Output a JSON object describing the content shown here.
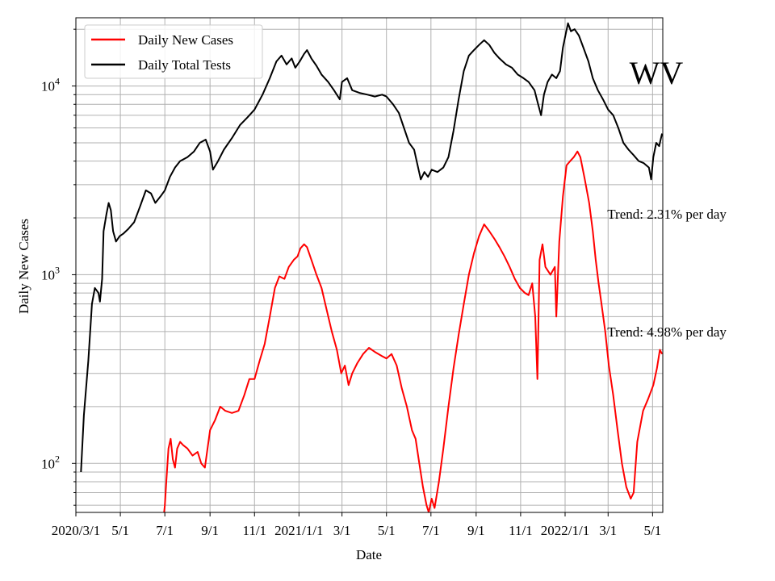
{
  "chart_data": {
    "type": "line",
    "title": "",
    "state_label": "WV",
    "xlabel": "Date",
    "ylabel": "Daily New Cases",
    "yscale": "log",
    "ylim": [
      55,
      23000
    ],
    "xlim": [
      "2020-03-01",
      "2022-05-15"
    ],
    "grid": true,
    "legend_position": "upper left",
    "x_ticks": [
      {
        "date": "2020-03-01",
        "label": "2020/3/1"
      },
      {
        "date": "2020-05-01",
        "label": "5/1"
      },
      {
        "date": "2020-07-01",
        "label": "7/1"
      },
      {
        "date": "2020-09-01",
        "label": "9/1"
      },
      {
        "date": "2020-11-01",
        "label": "11/1"
      },
      {
        "date": "2021-01-01",
        "label": "2021/1/1"
      },
      {
        "date": "2021-03-01",
        "label": "3/1"
      },
      {
        "date": "2021-05-01",
        "label": "5/1"
      },
      {
        "date": "2021-07-01",
        "label": "7/1"
      },
      {
        "date": "2021-09-01",
        "label": "9/1"
      },
      {
        "date": "2021-11-01",
        "label": "11/1"
      },
      {
        "date": "2022-01-01",
        "label": "2022/1/1"
      },
      {
        "date": "2022-03-01",
        "label": "3/1"
      },
      {
        "date": "2022-05-01",
        "label": "5/1"
      }
    ],
    "y_ticks": [
      {
        "value": 100,
        "base": "10",
        "exp": "2"
      },
      {
        "value": 1000,
        "base": "10",
        "exp": "3"
      },
      {
        "value": 10000,
        "base": "10",
        "exp": "4"
      }
    ],
    "annotations": [
      {
        "text": "Trend: 2.31% per day",
        "date": "2022-03-01",
        "value": 2100
      },
      {
        "text": "Trend: 4.98% per day",
        "date": "2022-03-01",
        "value": 500
      }
    ],
    "series": [
      {
        "name": "Daily Total Tests",
        "color": "#000000",
        "points": [
          [
            "2020-03-08",
            90
          ],
          [
            "2020-03-12",
            180
          ],
          [
            "2020-03-18",
            350
          ],
          [
            "2020-03-23",
            700
          ],
          [
            "2020-03-27",
            850
          ],
          [
            "2020-04-01",
            800
          ],
          [
            "2020-04-03",
            720
          ],
          [
            "2020-04-06",
            950
          ],
          [
            "2020-04-08",
            1700
          ],
          [
            "2020-04-12",
            2100
          ],
          [
            "2020-04-15",
            2400
          ],
          [
            "2020-04-18",
            2200
          ],
          [
            "2020-04-21",
            1700
          ],
          [
            "2020-04-25",
            1500
          ],
          [
            "2020-04-30",
            1600
          ],
          [
            "2020-05-05",
            1650
          ],
          [
            "2020-05-12",
            1750
          ],
          [
            "2020-05-20",
            1900
          ],
          [
            "2020-05-28",
            2300
          ],
          [
            "2020-06-05",
            2800
          ],
          [
            "2020-06-12",
            2700
          ],
          [
            "2020-06-18",
            2400
          ],
          [
            "2020-06-25",
            2600
          ],
          [
            "2020-07-01",
            2800
          ],
          [
            "2020-07-08",
            3300
          ],
          [
            "2020-07-15",
            3700
          ],
          [
            "2020-07-22",
            4000
          ],
          [
            "2020-08-01",
            4200
          ],
          [
            "2020-08-10",
            4500
          ],
          [
            "2020-08-18",
            5000
          ],
          [
            "2020-08-26",
            5200
          ],
          [
            "2020-09-01",
            4500
          ],
          [
            "2020-09-05",
            3600
          ],
          [
            "2020-09-12",
            4000
          ],
          [
            "2020-09-20",
            4600
          ],
          [
            "2020-10-01",
            5300
          ],
          [
            "2020-10-12",
            6200
          ],
          [
            "2020-10-22",
            6800
          ],
          [
            "2020-11-01",
            7500
          ],
          [
            "2020-11-12",
            9000
          ],
          [
            "2020-11-22",
            11000
          ],
          [
            "2020-12-01",
            13500
          ],
          [
            "2020-12-08",
            14500
          ],
          [
            "2020-12-15",
            13000
          ],
          [
            "2020-12-22",
            14000
          ],
          [
            "2020-12-27",
            12500
          ],
          [
            "2021-01-02",
            13500
          ],
          [
            "2021-01-08",
            14800
          ],
          [
            "2021-01-12",
            15500
          ],
          [
            "2021-01-18",
            14000
          ],
          [
            "2021-01-25",
            12800
          ],
          [
            "2021-02-01",
            11500
          ],
          [
            "2021-02-10",
            10500
          ],
          [
            "2021-02-18",
            9500
          ],
          [
            "2021-02-26",
            8500
          ],
          [
            "2021-03-01",
            10500
          ],
          [
            "2021-03-08",
            11000
          ],
          [
            "2021-03-15",
            9500
          ],
          [
            "2021-03-25",
            9200
          ],
          [
            "2021-04-05",
            9000
          ],
          [
            "2021-04-15",
            8800
          ],
          [
            "2021-04-25",
            9000
          ],
          [
            "2021-05-01",
            8800
          ],
          [
            "2021-05-10",
            8000
          ],
          [
            "2021-05-18",
            7200
          ],
          [
            "2021-05-25",
            6000
          ],
          [
            "2021-06-01",
            5000
          ],
          [
            "2021-06-08",
            4600
          ],
          [
            "2021-06-12",
            3900
          ],
          [
            "2021-06-17",
            3200
          ],
          [
            "2021-06-22",
            3500
          ],
          [
            "2021-06-27",
            3300
          ],
          [
            "2021-07-02",
            3600
          ],
          [
            "2021-07-10",
            3500
          ],
          [
            "2021-07-18",
            3700
          ],
          [
            "2021-07-25",
            4200
          ],
          [
            "2021-08-01",
            5800
          ],
          [
            "2021-08-08",
            8500
          ],
          [
            "2021-08-15",
            12000
          ],
          [
            "2021-08-22",
            14500
          ],
          [
            "2021-08-29",
            15500
          ],
          [
            "2021-09-05",
            16500
          ],
          [
            "2021-09-12",
            17500
          ],
          [
            "2021-09-19",
            16500
          ],
          [
            "2021-09-26",
            15000
          ],
          [
            "2021-10-03",
            14000
          ],
          [
            "2021-10-12",
            13000
          ],
          [
            "2021-10-20",
            12500
          ],
          [
            "2021-10-28",
            11500
          ],
          [
            "2021-11-05",
            11000
          ],
          [
            "2021-11-12",
            10500
          ],
          [
            "2021-11-20",
            9500
          ],
          [
            "2021-11-25",
            8000
          ],
          [
            "2021-11-29",
            7000
          ],
          [
            "2021-12-03",
            9000
          ],
          [
            "2021-12-08",
            10500
          ],
          [
            "2021-12-14",
            11500
          ],
          [
            "2021-12-20",
            11000
          ],
          [
            "2021-12-25",
            12000
          ],
          [
            "2021-12-29",
            16000
          ],
          [
            "2022-01-02",
            19000
          ],
          [
            "2022-01-05",
            21500
          ],
          [
            "2022-01-09",
            19500
          ],
          [
            "2022-01-14",
            20000
          ],
          [
            "2022-01-20",
            18500
          ],
          [
            "2022-01-26",
            16000
          ],
          [
            "2022-02-02",
            13500
          ],
          [
            "2022-02-08",
            11000
          ],
          [
            "2022-02-15",
            9500
          ],
          [
            "2022-02-22",
            8500
          ],
          [
            "2022-03-01",
            7500
          ],
          [
            "2022-03-08",
            7000
          ],
          [
            "2022-03-15",
            6000
          ],
          [
            "2022-03-22",
            5000
          ],
          [
            "2022-03-29",
            4600
          ],
          [
            "2022-04-05",
            4300
          ],
          [
            "2022-04-12",
            4000
          ],
          [
            "2022-04-19",
            3900
          ],
          [
            "2022-04-26",
            3700
          ],
          [
            "2022-04-29",
            3200
          ],
          [
            "2022-05-02",
            4200
          ],
          [
            "2022-05-06",
            5000
          ],
          [
            "2022-05-10",
            4800
          ],
          [
            "2022-05-14",
            5600
          ]
        ]
      },
      {
        "name": "Daily New Cases",
        "color": "#ff0000",
        "points": [
          [
            "2020-06-30",
            55
          ],
          [
            "2020-07-01",
            60
          ],
          [
            "2020-07-03",
            80
          ],
          [
            "2020-07-06",
            120
          ],
          [
            "2020-07-09",
            135
          ],
          [
            "2020-07-12",
            105
          ],
          [
            "2020-07-15",
            95
          ],
          [
            "2020-07-18",
            120
          ],
          [
            "2020-07-22",
            130
          ],
          [
            "2020-07-26",
            125
          ],
          [
            "2020-08-01",
            120
          ],
          [
            "2020-08-08",
            110
          ],
          [
            "2020-08-15",
            115
          ],
          [
            "2020-08-20",
            100
          ],
          [
            "2020-08-25",
            95
          ],
          [
            "2020-09-01",
            150
          ],
          [
            "2020-09-08",
            170
          ],
          [
            "2020-09-15",
            200
          ],
          [
            "2020-09-22",
            190
          ],
          [
            "2020-10-01",
            185
          ],
          [
            "2020-10-10",
            190
          ],
          [
            "2020-10-18",
            230
          ],
          [
            "2020-10-25",
            280
          ],
          [
            "2020-11-01",
            280
          ],
          [
            "2020-11-08",
            350
          ],
          [
            "2020-11-15",
            430
          ],
          [
            "2020-11-22",
            600
          ],
          [
            "2020-11-29",
            850
          ],
          [
            "2020-12-05",
            980
          ],
          [
            "2020-12-12",
            950
          ],
          [
            "2020-12-18",
            1100
          ],
          [
            "2020-12-25",
            1200
          ],
          [
            "2020-12-30",
            1250
          ],
          [
            "2021-01-03",
            1380
          ],
          [
            "2021-01-08",
            1450
          ],
          [
            "2021-01-12",
            1400
          ],
          [
            "2021-01-18",
            1200
          ],
          [
            "2021-01-25",
            1000
          ],
          [
            "2021-02-01",
            850
          ],
          [
            "2021-02-08",
            650
          ],
          [
            "2021-02-15",
            500
          ],
          [
            "2021-02-22",
            400
          ],
          [
            "2021-02-28",
            300
          ],
          [
            "2021-03-05",
            330
          ],
          [
            "2021-03-10",
            260
          ],
          [
            "2021-03-15",
            300
          ],
          [
            "2021-03-22",
            340
          ],
          [
            "2021-03-30",
            380
          ],
          [
            "2021-04-07",
            410
          ],
          [
            "2021-04-15",
            390
          ],
          [
            "2021-04-25",
            370
          ],
          [
            "2021-05-01",
            360
          ],
          [
            "2021-05-08",
            380
          ],
          [
            "2021-05-15",
            330
          ],
          [
            "2021-05-22",
            250
          ],
          [
            "2021-05-29",
            200
          ],
          [
            "2021-06-05",
            150
          ],
          [
            "2021-06-10",
            135
          ],
          [
            "2021-06-15",
            100
          ],
          [
            "2021-06-20",
            75
          ],
          [
            "2021-06-25",
            60
          ],
          [
            "2021-06-28",
            55
          ],
          [
            "2021-07-02",
            65
          ],
          [
            "2021-07-06",
            58
          ],
          [
            "2021-07-12",
            80
          ],
          [
            "2021-07-18",
            120
          ],
          [
            "2021-07-25",
            200
          ],
          [
            "2021-08-01",
            320
          ],
          [
            "2021-08-08",
            480
          ],
          [
            "2021-08-15",
            700
          ],
          [
            "2021-08-22",
            1000
          ],
          [
            "2021-08-29",
            1300
          ],
          [
            "2021-09-05",
            1600
          ],
          [
            "2021-09-12",
            1850
          ],
          [
            "2021-09-19",
            1700
          ],
          [
            "2021-09-26",
            1550
          ],
          [
            "2021-10-03",
            1400
          ],
          [
            "2021-10-10",
            1250
          ],
          [
            "2021-10-17",
            1100
          ],
          [
            "2021-10-24",
            950
          ],
          [
            "2021-10-31",
            850
          ],
          [
            "2021-11-07",
            800
          ],
          [
            "2021-11-12",
            780
          ],
          [
            "2021-11-17",
            900
          ],
          [
            "2021-11-21",
            600
          ],
          [
            "2021-11-24",
            280
          ],
          [
            "2021-11-27",
            1200
          ],
          [
            "2021-12-01",
            1450
          ],
          [
            "2021-12-05",
            1100
          ],
          [
            "2021-12-12",
            1000
          ],
          [
            "2021-12-18",
            1100
          ],
          [
            "2021-12-20",
            600
          ],
          [
            "2021-12-24",
            1500
          ],
          [
            "2021-12-29",
            2600
          ],
          [
            "2022-01-03",
            3800
          ],
          [
            "2022-01-08",
            4000
          ],
          [
            "2022-01-13",
            4200
          ],
          [
            "2022-01-18",
            4500
          ],
          [
            "2022-01-22",
            4200
          ],
          [
            "2022-01-28",
            3200
          ],
          [
            "2022-02-03",
            2400
          ],
          [
            "2022-02-08",
            1700
          ],
          [
            "2022-02-12",
            1200
          ],
          [
            "2022-02-16",
            900
          ],
          [
            "2022-02-20",
            700
          ],
          [
            "2022-02-25",
            500
          ],
          [
            "2022-03-02",
            330
          ],
          [
            "2022-03-08",
            230
          ],
          [
            "2022-03-14",
            150
          ],
          [
            "2022-03-20",
            100
          ],
          [
            "2022-03-26",
            75
          ],
          [
            "2022-04-01",
            65
          ],
          [
            "2022-04-05",
            70
          ],
          [
            "2022-04-10",
            130
          ],
          [
            "2022-04-18",
            190
          ],
          [
            "2022-04-25",
            220
          ],
          [
            "2022-05-02",
            260
          ],
          [
            "2022-05-07",
            320
          ],
          [
            "2022-05-11",
            400
          ],
          [
            "2022-05-14",
            380
          ]
        ]
      }
    ]
  }
}
